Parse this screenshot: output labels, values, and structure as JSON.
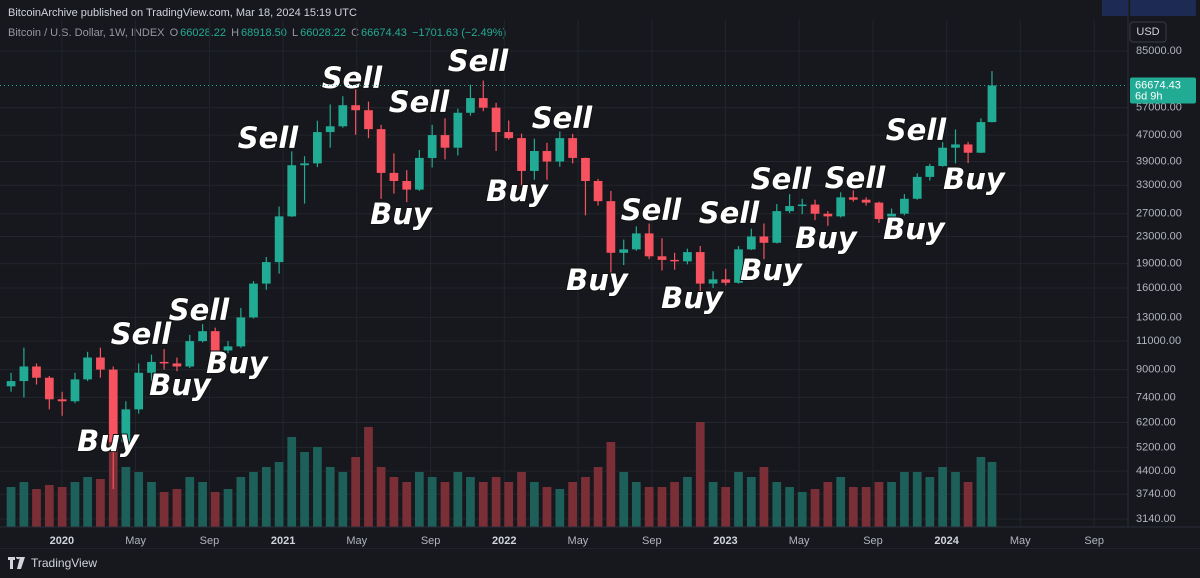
{
  "header": {
    "publisher": "BitcoinArchive published on TradingView.com, Mar 18, 2024 15:19 UTC",
    "symbol": "Bitcoin / U.S. Dollar, 1W, INDEX",
    "ohlc": [
      {
        "label": "O",
        "value": 66028.22
      },
      {
        "label": "H",
        "value": 68918.5,
        "text": "68918.50"
      },
      {
        "label": "L",
        "value": 66028.22
      },
      {
        "label": "C",
        "value": 66674.43
      }
    ],
    "change": "−1701.63 (−2.49%)"
  },
  "footer": "TradingView",
  "chart_data": {
    "type": "candlestick",
    "currency": "USD",
    "log": true,
    "grid": true,
    "up_color": "#22ab94",
    "down_color": "#f7525f",
    "volume_up_color": "#1d5f59",
    "volume_down_color": "#7a2f37",
    "xlim": [
      2019.72,
      2024.82
    ],
    "ylim": [
      2968,
      91850
    ],
    "xticks": [
      2020,
      {
        "value": 2020.333,
        "label": "May"
      },
      {
        "value": 2020.667,
        "label": "Sep"
      },
      2021,
      {
        "value": 2021.333,
        "label": "May"
      },
      {
        "value": 2021.667,
        "label": "Sep"
      },
      2022,
      {
        "value": 2022.333,
        "label": "May"
      },
      {
        "value": 2022.667,
        "label": "Sep"
      },
      2023,
      {
        "value": 2023.333,
        "label": "May"
      },
      {
        "value": 2023.667,
        "label": "Sep"
      },
      2024,
      {
        "value": 2024.333,
        "label": "May"
      },
      {
        "value": 2024.667,
        "label": "Sep"
      }
    ],
    "yticks": [
      {
        "value": 85000,
        "label": "85000.00"
      },
      {
        "value": 57000,
        "label": "57000.00"
      },
      {
        "value": 47000,
        "label": "47000.00"
      },
      {
        "value": 39000,
        "label": "39000.00"
      },
      {
        "value": 33000,
        "label": "33000.00"
      },
      {
        "value": 27000,
        "label": "27000.00"
      },
      {
        "value": 23000,
        "label": "23000.00"
      },
      {
        "value": 19000,
        "label": "19000.00"
      },
      {
        "value": 16000,
        "label": "16000.00"
      },
      {
        "value": 13000,
        "label": "13000.00"
      },
      {
        "value": 11000,
        "label": "11000.00"
      },
      {
        "value": 9000,
        "label": "9000.00"
      },
      {
        "value": 7400,
        "label": "7400.00"
      },
      {
        "value": 6200,
        "label": "6200.00"
      },
      {
        "value": 5200,
        "label": "5200.00"
      },
      {
        "value": 4400,
        "label": "4400.00"
      },
      {
        "value": 3740,
        "label": "3740.00"
      },
      {
        "value": 3140,
        "label": "3140.00"
      }
    ],
    "high": [
      8800,
      10500,
      9400,
      8600,
      7700,
      8800,
      10200,
      10500,
      9200,
      7200,
      9400,
      10000,
      10400,
      9800,
      11500,
      12400,
      12100,
      11000,
      13900,
      16800,
      19900,
      28400,
      41900,
      40500,
      52000,
      58300,
      61800,
      64800,
      59500,
      50500,
      41300,
      36700,
      42300,
      50500,
      52900,
      56600,
      67000,
      69000,
      59000,
      52100,
      47500,
      45800,
      44500,
      48200,
      47400,
      40100,
      34500,
      31700,
      22500,
      24700,
      25200,
      22700,
      20500,
      21100,
      21500,
      18000,
      18300,
      21500,
      24300,
      25200,
      28900,
      31000,
      30000,
      29800,
      27500,
      31400,
      31800,
      30300,
      29400,
      28000,
      31000,
      35900,
      38400,
      44700,
      48900,
      44800,
      52900,
      73757.39
    ],
    "low": [
      7700,
      7400,
      8100,
      6800,
      6500,
      7100,
      8300,
      8500,
      3880.59,
      5200,
      6600,
      8300,
      9000,
      8900,
      9100,
      10900,
      9900,
      10100,
      10500,
      12900,
      15800,
      17700,
      26400,
      29000,
      37500,
      43000,
      49500,
      47100,
      46000,
      30000,
      31100,
      29300,
      31700,
      37400,
      39600,
      40700,
      53900,
      55600,
      42000,
      45500,
      33000,
      34300,
      34300,
      37600,
      38500,
      26700,
      28600,
      17600,
      18800,
      20800,
      19600,
      18100,
      18200,
      18900,
      15500,
      16000,
      16300,
      16500,
      20900,
      19600,
      21900,
      27100,
      26900,
      25800,
      24800,
      26300,
      29400,
      28600,
      25300,
      24900,
      26700,
      29800,
      34100,
      37600,
      38500,
      38600,
      41400,
      51400
    ],
    "countdown": "6d 9h",
    "x": [
      2019.77,
      2019.828,
      2019.885,
      2019.943,
      2020.001,
      2020.059,
      2020.116,
      2020.174,
      2020.232,
      2020.289,
      2020.347,
      2020.405,
      2020.462,
      2020.52,
      2020.578,
      2020.636,
      2020.693,
      2020.751,
      2020.809,
      2020.866,
      2020.924,
      2020.982,
      2021.039,
      2021.097,
      2021.155,
      2021.213,
      2021.27,
      2021.328,
      2021.386,
      2021.443,
      2021.501,
      2021.559,
      2021.616,
      2021.674,
      2021.732,
      2021.79,
      2021.847,
      2021.905,
      2021.963,
      2022.02,
      2022.078,
      2022.136,
      2022.193,
      2022.251,
      2022.309,
      2022.367,
      2022.424,
      2022.482,
      2022.54,
      2022.597,
      2022.655,
      2022.713,
      2022.77,
      2022.828,
      2022.886,
      2022.944,
      2023.001,
      2023.059,
      2023.117,
      2023.174,
      2023.232,
      2023.29,
      2023.347,
      2023.405,
      2023.463,
      2023.521,
      2023.578,
      2023.636,
      2023.694,
      2023.751,
      2023.809,
      2023.867,
      2023.924,
      2023.982,
      2024.04,
      2024.097,
      2024.155,
      2024.205
    ],
    "open": [
      8000,
      8300,
      9200,
      8500,
      7300,
      7200,
      8400,
      9800,
      9000,
      5400,
      6800,
      8800,
      9500,
      9400,
      9200,
      11000,
      11800,
      10300,
      10600,
      13000,
      16500,
      19200,
      26500,
      38000,
      38500,
      48000,
      50000,
      58000,
      56000,
      49000,
      36000,
      34000,
      32000,
      40000,
      47000,
      43000,
      55000,
      61000,
      57000,
      48000,
      46000,
      36500,
      42000,
      39000,
      46000,
      40000,
      34000,
      29500,
      20500,
      21000,
      23500,
      20000,
      19500,
      19300,
      20600,
      16500,
      17000,
      16600,
      21000,
      23000,
      22000,
      27500,
      28500,
      28800,
      27000,
      26500,
      30300,
      29800,
      29200,
      26000,
      27000,
      30000,
      35000,
      37800,
      43000,
      44000,
      41500,
      51500
    ],
    "close": [
      8300,
      9200,
      8500,
      7300,
      7200,
      8400,
      9800,
      9000,
      5400,
      6800,
      8800,
      9500,
      9400,
      9200,
      11000,
      11800,
      10300,
      10600,
      13000,
      16500,
      19200,
      26500,
      38000,
      38500,
      48000,
      50000,
      58000,
      56000,
      49000,
      36000,
      34000,
      32000,
      40000,
      47000,
      43000,
      55000,
      61000,
      57000,
      48000,
      46000,
      36500,
      42000,
      39000,
      46000,
      40000,
      34000,
      29500,
      20500,
      21000,
      23500,
      20000,
      19500,
      19300,
      20600,
      16500,
      17000,
      16600,
      21000,
      23000,
      22000,
      27500,
      28500,
      28800,
      27000,
      26500,
      30300,
      29800,
      29200,
      26000,
      27000,
      30000,
      35000,
      37800,
      43000,
      44000,
      41500,
      51500,
      66674.43
    ],
    "volume": [
      40,
      45,
      38,
      42,
      40,
      45,
      50,
      48,
      100,
      60,
      55,
      45,
      35,
      38,
      50,
      45,
      35,
      38,
      50,
      55,
      60,
      65,
      90,
      75,
      80,
      60,
      55,
      70,
      100,
      60,
      50,
      45,
      55,
      50,
      45,
      55,
      50,
      45,
      50,
      45,
      55,
      45,
      40,
      38,
      45,
      50,
      60,
      85,
      55,
      45,
      40,
      40,
      45,
      50,
      105,
      45,
      40,
      55,
      50,
      60,
      45,
      40,
      35,
      38,
      45,
      50,
      40,
      40,
      45,
      45,
      55,
      55,
      50,
      60,
      55,
      45,
      70,
      65
    ],
    "annotations": [
      "Sell",
      "Sell",
      "Sell",
      "Sell",
      "Sell",
      "Sell",
      "Sell",
      "Sell",
      "Sell",
      "Sell",
      "Sell",
      "Sell",
      "Buy",
      "Buy",
      "Buy",
      "Buy",
      "Buy",
      "Buy",
      "Buy",
      "Buy",
      "Buy",
      "Buy",
      "Buy"
    ]
  }
}
